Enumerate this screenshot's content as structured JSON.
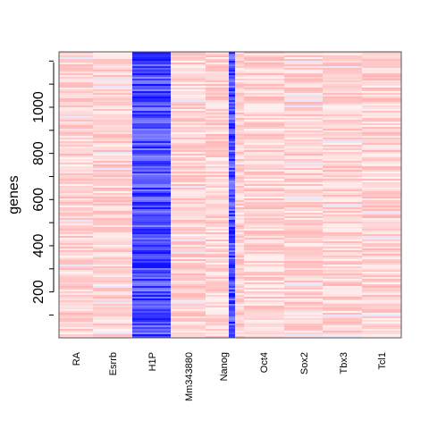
{
  "chart_data": {
    "type": "heatmap",
    "ylabel": "genes",
    "xlabel": "",
    "title": "",
    "columns": [
      "RA",
      "Esrrb",
      "H1P",
      "Mm343880",
      "Nanog",
      "Oct4",
      "Sox2",
      "Tbx3",
      "Tcl1"
    ],
    "y_ticks": [
      200,
      400,
      600,
      800,
      1000
    ],
    "y_tick_labels": [
      "200",
      "400",
      "600",
      "800",
      "1000"
    ],
    "ylim": [
      1,
      1240
    ],
    "n_genes": 1240,
    "column_widths": [
      1,
      1,
      1.1,
      0.9,
      0.25,
      0.1,
      1.1,
      1,
      1,
      1.1,
      1
    ],
    "column_widths_note_visible": false,
    "column_color_profile": [
      {
        "column": "RA",
        "dominant": "light-red"
      },
      {
        "column": "Esrrb",
        "dominant": "light-red"
      },
      {
        "column": "H1P",
        "dominant": "blue"
      },
      {
        "column": "Mm343880",
        "dominant": "light-red"
      },
      {
        "column": "Nanog",
        "dominant": "light-red",
        "stripe": "blue"
      },
      {
        "column": "Oct4",
        "dominant": "light-red"
      },
      {
        "column": "Sox2",
        "dominant": "light-red"
      },
      {
        "column": "Tbx3",
        "dominant": "light-red"
      },
      {
        "column": "Tcl1",
        "dominant": "light-red"
      }
    ],
    "colors": {
      "high": "#ff0000",
      "low": "#0000ff",
      "background": "#ffffff"
    }
  }
}
